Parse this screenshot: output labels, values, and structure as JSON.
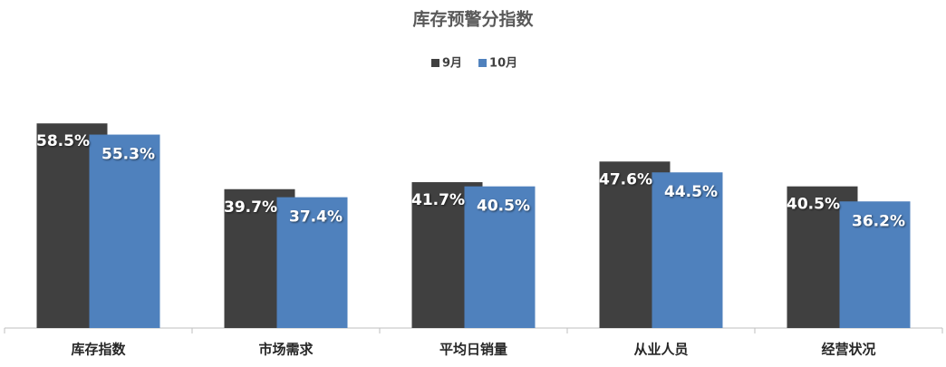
{
  "chart_data": {
    "type": "bar",
    "title": "库存预警分指数",
    "categories": [
      "库存指数",
      "市场需求",
      "平均日销量",
      "从业人员",
      "经营状况"
    ],
    "series": [
      {
        "name": "9月",
        "color": "#404040",
        "values": [
          58.5,
          39.7,
          41.7,
          47.6,
          40.5
        ],
        "value_labels": [
          "58.5%",
          "39.7%",
          "41.7%",
          "47.6%",
          "40.5%"
        ]
      },
      {
        "name": "10月",
        "color": "#4f81bd",
        "values": [
          55.3,
          37.4,
          40.5,
          44.5,
          36.2
        ],
        "value_labels": [
          "55.3%",
          "37.4%",
          "40.5%",
          "44.5%",
          "36.2%"
        ]
      }
    ]
  }
}
